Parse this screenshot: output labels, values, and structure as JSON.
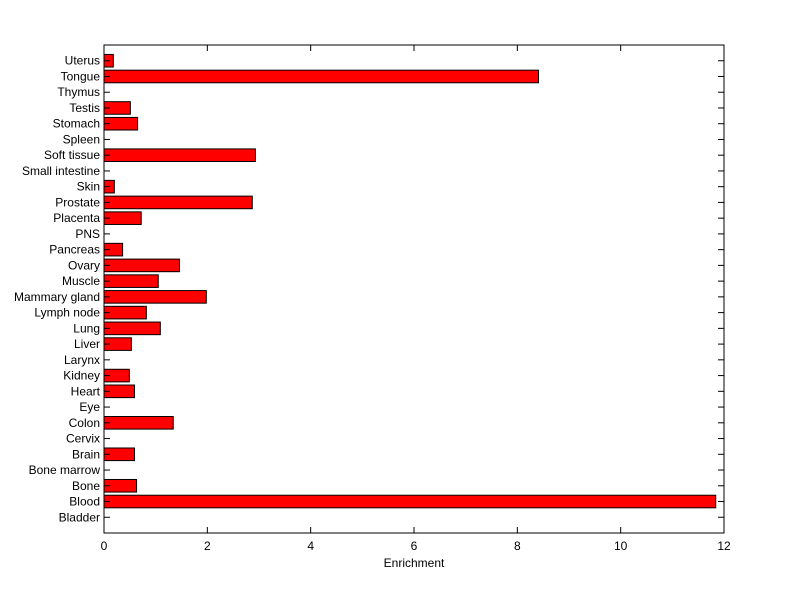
{
  "chart_data": {
    "type": "bar",
    "orientation": "horizontal",
    "title": "",
    "xlabel": "Enrichment",
    "ylabel": "",
    "xlim": [
      0,
      12
    ],
    "xticks": [
      0,
      2,
      4,
      6,
      8,
      10,
      12
    ],
    "grid": false,
    "bar_color": "#ff0000",
    "categories": [
      "Bladder",
      "Blood",
      "Bone",
      "Bone marrow",
      "Brain",
      "Cervix",
      "Colon",
      "Eye",
      "Heart",
      "Kidney",
      "Larynx",
      "Liver",
      "Lung",
      "Lymph node",
      "Mammary gland",
      "Muscle",
      "Ovary",
      "Pancreas",
      "PNS",
      "Placenta",
      "Prostate",
      "Skin",
      "Small intestine",
      "Soft tissue",
      "Spleen",
      "Stomach",
      "Testis",
      "Thymus",
      "Tongue",
      "Uterus"
    ],
    "values": [
      0,
      11.84,
      0.63,
      0,
      0.59,
      0,
      1.34,
      0,
      0.59,
      0.49,
      0,
      0.53,
      1.09,
      0.82,
      1.98,
      1.05,
      1.46,
      0.36,
      0,
      0.72,
      2.87,
      0.2,
      0,
      2.93,
      0,
      0.65,
      0.51,
      0,
      8.41,
      0.18
    ]
  }
}
